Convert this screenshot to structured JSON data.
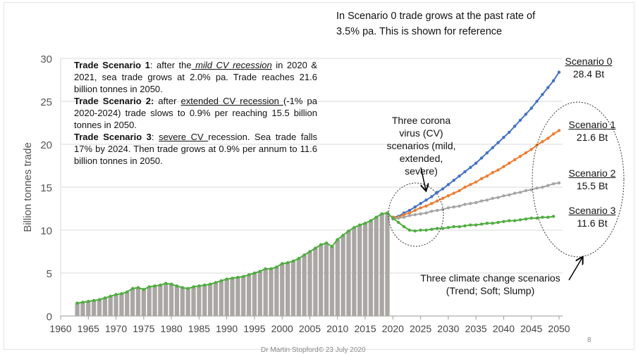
{
  "chart_data": {
    "type": "bar+line",
    "ylabel": "Billion tonnes trade",
    "xlabel": "",
    "ylim": [
      0,
      30
    ],
    "xlim": [
      1960,
      2050
    ],
    "yticks": [
      "0",
      "5",
      "10",
      "15",
      "20",
      "25",
      "30"
    ],
    "xticks": [
      "1960",
      "1965",
      "1970",
      "1975",
      "1980",
      "1985",
      "1990",
      "1995",
      "2000",
      "2005",
      "2010",
      "2015",
      "2020",
      "2025",
      "2030",
      "2035",
      "2040",
      "2045",
      "2050"
    ],
    "grid": "horizontal",
    "bars": {
      "color": "#a9a6a3",
      "x": [
        1963,
        1964,
        1965,
        1966,
        1967,
        1968,
        1969,
        1970,
        1971,
        1972,
        1973,
        1974,
        1975,
        1976,
        1977,
        1978,
        1979,
        1980,
        1981,
        1982,
        1983,
        1984,
        1985,
        1986,
        1987,
        1988,
        1989,
        1990,
        1991,
        1992,
        1993,
        1994,
        1995,
        1996,
        1997,
        1998,
        1999,
        2000,
        2001,
        2002,
        2003,
        2004,
        2005,
        2006,
        2007,
        2008,
        2009,
        2010,
        2011,
        2012,
        2013,
        2014,
        2015,
        2016,
        2017,
        2018,
        2019
      ],
      "values": [
        1.5,
        1.6,
        1.7,
        1.8,
        1.9,
        2.1,
        2.3,
        2.5,
        2.6,
        2.8,
        3.2,
        3.3,
        3.1,
        3.4,
        3.5,
        3.6,
        3.8,
        3.7,
        3.5,
        3.3,
        3.2,
        3.4,
        3.5,
        3.6,
        3.7,
        3.9,
        4.1,
        4.3,
        4.4,
        4.5,
        4.6,
        4.8,
        5.0,
        5.2,
        5.5,
        5.5,
        5.7,
        6.1,
        6.2,
        6.4,
        6.7,
        7.1,
        7.5,
        7.9,
        8.3,
        8.5,
        8.1,
        8.9,
        9.4,
        9.9,
        10.3,
        10.6,
        10.8,
        11.1,
        11.5,
        11.9,
        12.0
      ]
    },
    "series": [
      {
        "name": "Scenario 0",
        "color": "#4472c4",
        "x_start": 2020,
        "values": [
          11.5,
          11.6,
          12.0,
          12.3,
          12.7,
          13.1,
          13.5,
          13.9,
          14.4,
          14.8,
          15.3,
          15.8,
          16.3,
          16.8,
          17.3,
          17.8,
          18.4,
          19.0,
          19.6,
          20.2,
          20.8,
          21.4,
          22.1,
          22.8,
          23.5,
          24.2,
          25.0,
          25.8,
          26.6,
          27.4,
          28.4
        ]
      },
      {
        "name": "Scenario 1",
        "color": "#ed7d31",
        "x_start": 2020,
        "values": [
          11.5,
          11.5,
          11.8,
          12.0,
          12.3,
          12.6,
          12.8,
          13.1,
          13.4,
          13.7,
          14.0,
          14.3,
          14.6,
          15.0,
          15.3,
          15.6,
          16.0,
          16.3,
          16.7,
          17.0,
          17.4,
          17.8,
          18.2,
          18.6,
          19.0,
          19.4,
          19.9,
          20.3,
          20.7,
          21.2,
          21.6
        ]
      },
      {
        "name": "Scenario 2",
        "color": "#a5a5a5",
        "x_start": 2020,
        "values": [
          11.3,
          11.4,
          11.5,
          11.7,
          11.8,
          11.9,
          12.0,
          12.2,
          12.3,
          12.4,
          12.6,
          12.7,
          12.8,
          13.0,
          13.1,
          13.2,
          13.4,
          13.5,
          13.7,
          13.8,
          14.0,
          14.1,
          14.3,
          14.4,
          14.6,
          14.7,
          14.9,
          15.0,
          15.2,
          15.4,
          15.5
        ]
      },
      {
        "name": "Scenario 3",
        "color": "#4ead3e",
        "x_start": 1963,
        "values": [
          1.5,
          1.6,
          1.7,
          1.8,
          1.9,
          2.1,
          2.3,
          2.5,
          2.6,
          2.8,
          3.2,
          3.3,
          3.1,
          3.4,
          3.5,
          3.6,
          3.8,
          3.7,
          3.5,
          3.3,
          3.2,
          3.4,
          3.5,
          3.6,
          3.7,
          3.9,
          4.1,
          4.3,
          4.4,
          4.5,
          4.6,
          4.8,
          5.0,
          5.2,
          5.5,
          5.5,
          5.7,
          6.1,
          6.2,
          6.4,
          6.7,
          7.1,
          7.5,
          7.9,
          8.3,
          8.5,
          8.1,
          8.9,
          9.4,
          9.9,
          10.3,
          10.6,
          10.8,
          11.1,
          11.5,
          11.9,
          12.0,
          11.4,
          10.9,
          10.4,
          10.0,
          9.9,
          10.0,
          10.0,
          10.1,
          10.2,
          10.2,
          10.3,
          10.4,
          10.4,
          10.5,
          10.6,
          10.6,
          10.7,
          10.8,
          10.8,
          10.9,
          11.0,
          11.1,
          11.1,
          11.2,
          11.3,
          11.4,
          11.4,
          11.5,
          11.5,
          11.6
        ]
      }
    ],
    "annotations": {
      "top_note": [
        "In Scenario 0 trade grows at the past rate of",
        "3.5% pa. This is shown for reference"
      ],
      "corona": [
        "Three corona",
        "virus (CV)",
        "scenarios (mild,",
        "extended,",
        "severe)"
      ],
      "climate": [
        "Three climate change scenarios",
        "(Trend; Soft; Slump)"
      ],
      "scenario_labels": [
        {
          "name": "Scenario 0",
          "value": "28.4 Bt"
        },
        {
          "name": "Scenario 1",
          "value": "21.6 Bt"
        },
        {
          "name": "Scenario 2",
          "value": "15.5 Bt"
        },
        {
          "name": "Scenario 3",
          "value": "11.6 Bt"
        }
      ],
      "box": {
        "s1_title": "Trade Scenario 1",
        "s1_a": ": after the",
        "s1_u": " mild CV recession",
        "s1_b": " in 2020 & 2021, sea trade grows at 2.0% pa. Trade reaches 21.6 billion tonnes in 2050.",
        "s2_title": "Trade Scenario 2:",
        "s2_a": " after ",
        "s2_u": "extended CV recession ",
        "s2_b": "(-1% pa 2020-2024) trade slows to 0.9% per reaching 15.5 billion tonnes in 2050.",
        "s3_title": "Trade Scenario 3",
        "s3_a": ": ",
        "s3_u": "severe CV ",
        "s3_b": "recession. Sea trade falls 17% by 2024. Then trade grows at 0.9% per annum to 11.6 billion tonnes in 2050."
      }
    }
  },
  "footer": {
    "page": "8",
    "credit": "Dr Martin Stopford© 23 July 2020"
  }
}
